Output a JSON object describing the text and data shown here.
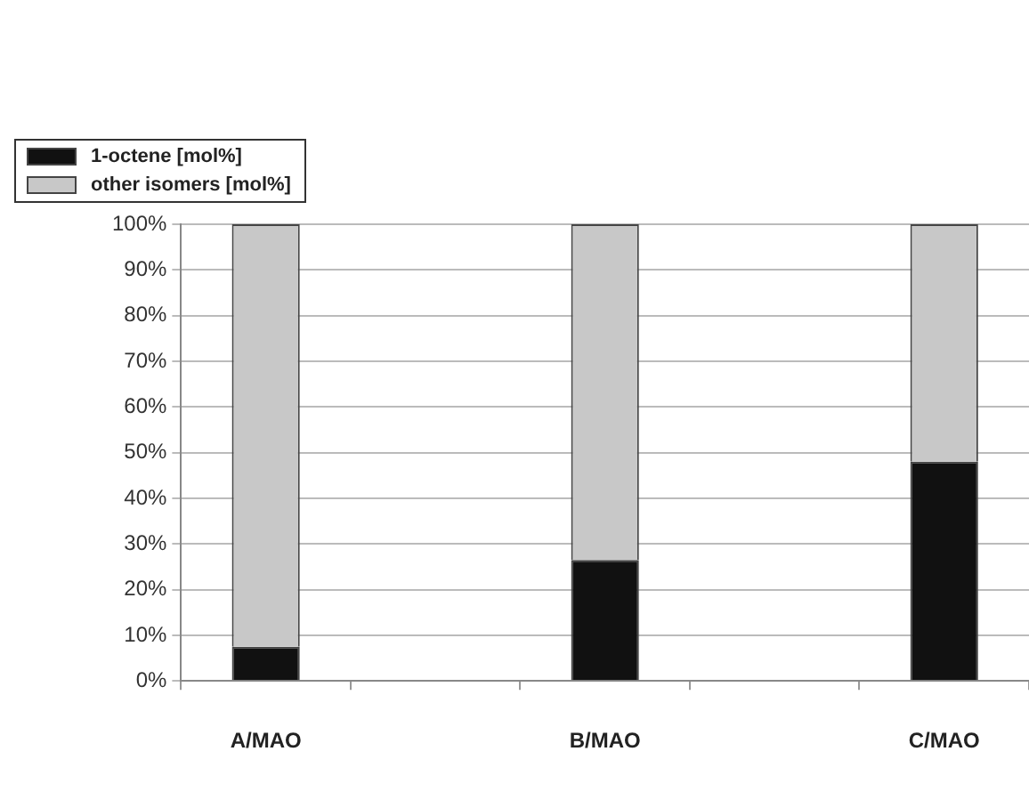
{
  "chart_data": {
    "type": "bar",
    "stacked": true,
    "categories": [
      "A/MAO",
      null,
      "B/MAO",
      null,
      "C/MAO"
    ],
    "series": [
      {
        "name": "1-octene [mol%]",
        "color": "#111111",
        "values": [
          7.5,
          null,
          26.5,
          null,
          48
        ]
      },
      {
        "name": "other isomers [mol%]",
        "color": "#c8c8c8",
        "values": [
          92.5,
          null,
          73.5,
          null,
          52
        ]
      }
    ],
    "ylim": [
      0,
      100
    ],
    "yticks": [
      {
        "value": 0,
        "label": "0%"
      },
      {
        "value": 10,
        "label": "10%"
      },
      {
        "value": 20,
        "label": "20%"
      },
      {
        "value": 30,
        "label": "30%"
      },
      {
        "value": 40,
        "label": "40%"
      },
      {
        "value": 50,
        "label": "50%"
      },
      {
        "value": 60,
        "label": "60%"
      },
      {
        "value": 70,
        "label": "70%"
      },
      {
        "value": 80,
        "label": "80%"
      },
      {
        "value": 90,
        "label": "90%"
      },
      {
        "value": 100,
        "label": "100%"
      }
    ],
    "grid": "y",
    "legend": "top left"
  }
}
